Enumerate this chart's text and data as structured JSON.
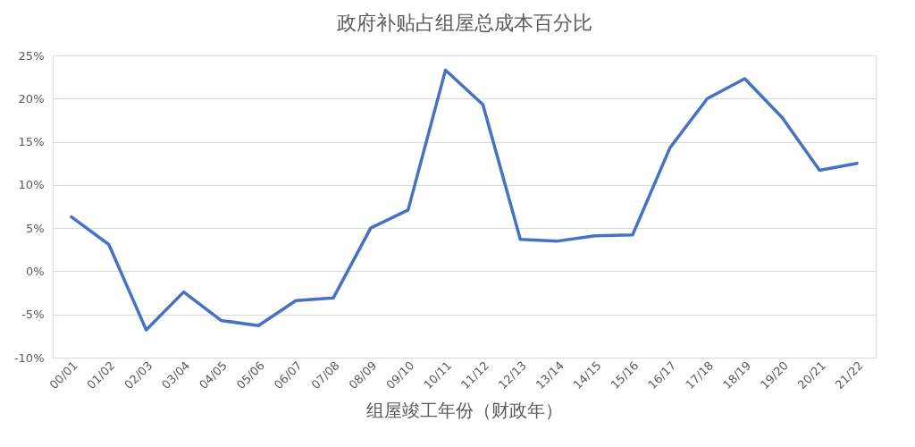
{
  "chart_data": {
    "type": "line",
    "title": "政府补贴占组屋总成本百分比",
    "xlabel": "组屋竣工年份（财政年）",
    "categories": [
      "00/01",
      "01/02",
      "02/03",
      "03/04",
      "04/05",
      "05/06",
      "06/07",
      "07/08",
      "08/09",
      "09/10",
      "10/11",
      "11/12",
      "12/13",
      "13/14",
      "14/15",
      "15/16",
      "16/17",
      "17/18",
      "18/19",
      "19/20",
      "20/21",
      "21/22"
    ],
    "series": [
      {
        "color": "#4472c4",
        "values": [
          6.3,
          3.1,
          -6.8,
          -2.4,
          -5.7,
          -6.3,
          -3.4,
          -3.1,
          5.0,
          7.1,
          23.3,
          19.3,
          3.7,
          3.5,
          4.1,
          4.2,
          14.3,
          20.0,
          22.3,
          17.8,
          11.7,
          12.5
        ]
      }
    ],
    "ylim": [
      -10,
      25
    ],
    "yticks": [
      {
        "value": -10,
        "label": "-10%"
      },
      {
        "value": -5,
        "label": "-5%"
      },
      {
        "value": 0,
        "label": "0%"
      },
      {
        "value": 5,
        "label": "5%"
      },
      {
        "value": 10,
        "label": "10%"
      },
      {
        "value": 15,
        "label": "15%"
      },
      {
        "value": 20,
        "label": "20%"
      },
      {
        "value": 25,
        "label": "25%"
      }
    ],
    "grid": "y",
    "marker": "none",
    "line_style": "solid"
  }
}
